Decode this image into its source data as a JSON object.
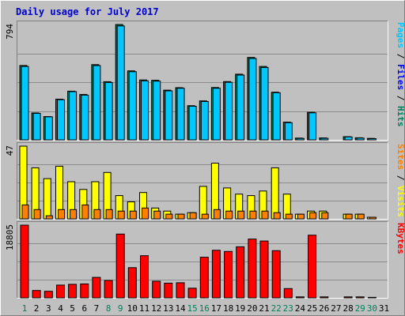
{
  "title": "Daily usage for July 2017",
  "colors": {
    "background": "#c0c0c0",
    "plot_bg": "#c0c0c0",
    "frame_light": "#ffffff",
    "frame_dark": "#808080",
    "grid": "#8c8c8c",
    "title": "#0000ce",
    "hits": "#00805c",
    "files": "#0000ff",
    "pages": "#00c8ff",
    "visits": "#ffff00",
    "sites": "#ff8000",
    "kbytes": "#ff0000",
    "weekend": "#00805c",
    "weekday": "#000000"
  },
  "chart_data": [
    {
      "type": "bar",
      "name": "panel-1",
      "label_parts": [
        {
          "text": "Pages",
          "color": "#00c8ff"
        },
        {
          "text": " / ",
          "color": "#000000"
        },
        {
          "text": "Files",
          "color": "#0000ff"
        },
        {
          "text": " / ",
          "color": "#000000"
        },
        {
          "text": "Hits",
          "color": "#00805c"
        }
      ],
      "ymax_label": "794",
      "ymax": 794,
      "categories": [
        "1",
        "2",
        "3",
        "4",
        "5",
        "6",
        "7",
        "8",
        "9",
        "10",
        "11",
        "12",
        "13",
        "14",
        "15",
        "16",
        "17",
        "18",
        "19",
        "20",
        "21",
        "22",
        "23",
        "24",
        "25",
        "26",
        "27",
        "28",
        "29",
        "30",
        "31"
      ],
      "weekend_days": [
        "1",
        "8",
        "9",
        "15",
        "16",
        "22",
        "23",
        "29",
        "30"
      ],
      "series": [
        {
          "key": "hits",
          "color": "#00805c",
          "values": [
            512,
            185,
            160,
            280,
            335,
            312,
            518,
            400,
            794,
            475,
            412,
            410,
            342,
            359,
            235,
            268,
            360,
            401,
            452,
            567,
            505,
            328,
            122,
            12,
            190,
            13,
            0,
            22,
            14,
            10,
            0
          ]
        },
        {
          "key": "files",
          "color": "#00c8ff",
          "values": [
            505,
            182,
            158,
            276,
            332,
            308,
            511,
            395,
            784,
            469,
            406,
            404,
            337,
            355,
            231,
            264,
            355,
            396,
            446,
            560,
            498,
            324,
            118,
            10,
            186,
            11,
            0,
            20,
            12,
            8,
            0
          ]
        }
      ]
    },
    {
      "type": "bar",
      "name": "panel-2",
      "label_parts": [
        {
          "text": "Sites",
          "color": "#ff8000"
        },
        {
          "text": " / ",
          "color": "#000000"
        },
        {
          "text": "Visits",
          "color": "#ffff00"
        }
      ],
      "ymax_label": "47",
      "ymax": 47,
      "categories": [
        "1",
        "2",
        "3",
        "4",
        "5",
        "6",
        "7",
        "8",
        "9",
        "10",
        "11",
        "12",
        "13",
        "14",
        "15",
        "16",
        "17",
        "18",
        "19",
        "20",
        "21",
        "22",
        "23",
        "24",
        "25",
        "26",
        "27",
        "28",
        "29",
        "30",
        "31"
      ],
      "series": [
        {
          "key": "visits",
          "color": "#ffff00",
          "values": [
            47,
            33,
            26,
            34,
            24,
            19,
            24,
            30,
            15,
            11,
            17,
            7,
            5,
            3,
            4,
            21,
            36,
            20,
            16,
            15,
            18,
            33,
            16,
            3,
            5,
            5,
            0,
            3,
            3,
            1,
            0
          ]
        },
        {
          "key": "sites",
          "color": "#ff8000",
          "values": [
            9,
            6,
            2,
            6,
            6,
            9,
            6,
            6,
            5,
            5,
            7,
            5,
            3,
            3,
            4,
            3,
            6,
            5,
            5,
            5,
            5,
            4,
            3,
            3,
            4,
            4,
            0,
            3,
            3,
            1,
            0
          ]
        }
      ]
    },
    {
      "type": "bar",
      "name": "panel-3",
      "label_parts": [
        {
          "text": "KBytes",
          "color": "#ff0000"
        }
      ],
      "ymax_label": "18805",
      "ymax": 18805,
      "categories": [
        "1",
        "2",
        "3",
        "4",
        "5",
        "6",
        "7",
        "8",
        "9",
        "10",
        "11",
        "12",
        "13",
        "14",
        "15",
        "16",
        "17",
        "18",
        "19",
        "20",
        "21",
        "22",
        "23",
        "24",
        "25",
        "26",
        "27",
        "28",
        "29",
        "30",
        "31"
      ],
      "series": [
        {
          "key": "kbytes",
          "color": "#ff0000",
          "values": [
            18805,
            1900,
            1700,
            3300,
            3500,
            3600,
            5300,
            4500,
            16500,
            7800,
            10900,
            4300,
            3800,
            3900,
            2500,
            10500,
            12300,
            12000,
            13200,
            15200,
            14700,
            12200,
            2400,
            250,
            16200,
            250,
            0,
            250,
            250,
            120,
            0
          ]
        }
      ]
    }
  ]
}
